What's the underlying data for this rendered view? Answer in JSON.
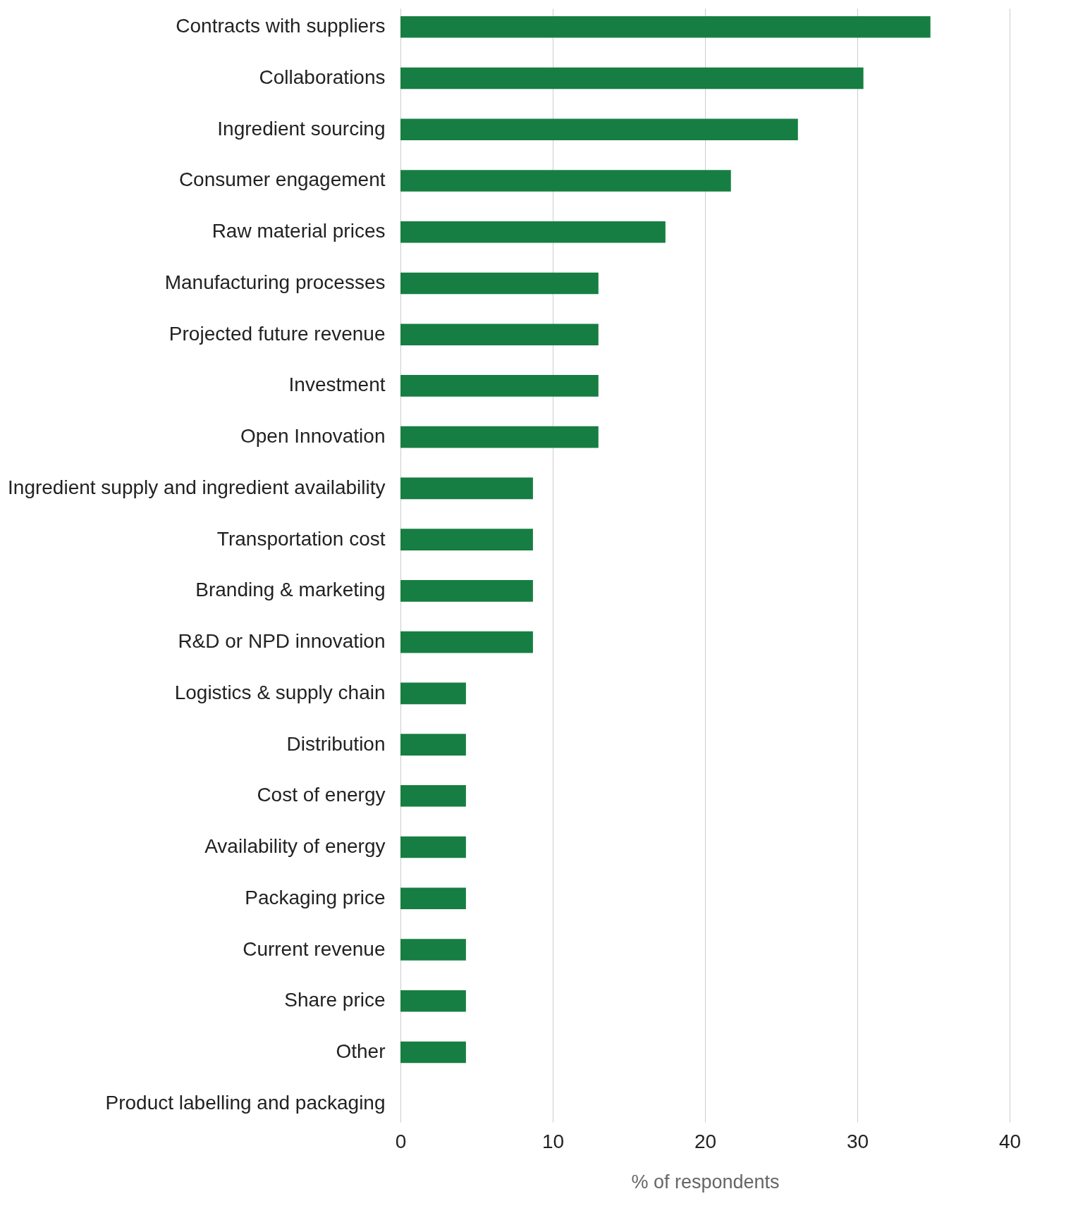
{
  "chart_data": {
    "type": "bar",
    "orientation": "horizontal",
    "xlabel": "% of respondents",
    "categories": [
      "Contracts with suppliers",
      "Collaborations",
      "Ingredient sourcing",
      "Consumer engagement",
      "Raw material prices",
      "Manufacturing processes",
      "Projected future revenue",
      "Investment",
      "Open Innovation",
      "Ingredient supply and ingredient availability",
      "Transportation cost",
      "Branding & marketing",
      "R&D or NPD innovation",
      "Logistics & supply chain",
      "Distribution",
      "Cost of energy",
      "Availability of energy",
      "Packaging price",
      "Current revenue",
      "Share price",
      "Other",
      "Product labelling and packaging"
    ],
    "values": [
      34.8,
      30.4,
      26.1,
      21.7,
      17.4,
      13.0,
      13.0,
      13.0,
      13.0,
      8.7,
      8.7,
      8.7,
      8.7,
      4.3,
      4.3,
      4.3,
      4.3,
      4.3,
      4.3,
      4.3,
      4.3,
      0
    ],
    "color": "#167e42",
    "xlim": [
      0,
      40
    ],
    "xticks": [
      0,
      10,
      20,
      30,
      40
    ],
    "grid": "x"
  }
}
